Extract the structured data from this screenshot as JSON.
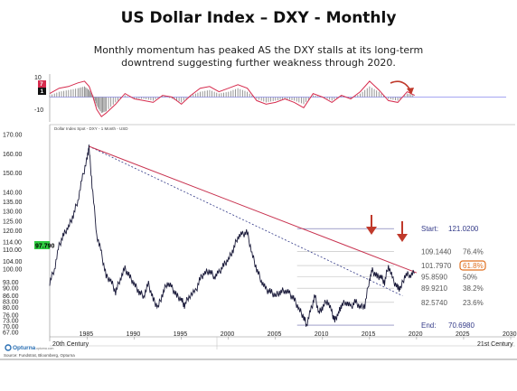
{
  "title": "US Dollar Index – DXY - Monthly",
  "subtitle": "Monthly momentum has peaked AS the DXY stalls at its long-term downtrend suggesting further weakness through 2020.",
  "chart_label": "Dollar Index Spot - DXY - 1 Month - USD",
  "source": "Source: Fundstrat, Bloomberg, Opturna",
  "logo": "Opturna",
  "logo_small": "opturna.com",
  "century_labels": [
    "20th Century",
    "21st Century"
  ],
  "colors": {
    "price": "#1a1a3a",
    "momentum_line": "#d62c4e",
    "momentum_hist": "#8a8a8a",
    "downtrend": "#c8324f",
    "arrow": "#c0392b",
    "fib_box": "#e07020",
    "current_badge": "#2ecc40",
    "zero_badge": "#111111",
    "pos_badge": "#d62c4e"
  },
  "chart_data": {
    "type": "line",
    "xlim": [
      1981,
      2030
    ],
    "ylim": [
      66,
      172
    ],
    "x_ticks": [
      "1985",
      "1990",
      "1995",
      "2000",
      "2005",
      "2010",
      "2015",
      "2020",
      "2025",
      "2030"
    ],
    "y_ticks": [
      "170.00",
      "160.00",
      "150.00",
      "140.00",
      "135.00",
      "130.00",
      "125.00",
      "120.00",
      "114.00",
      "110.00",
      "104.00",
      "100.00",
      "93.00",
      "90.00",
      "86.00",
      "83.00",
      "80.00",
      "76.00",
      "73.00",
      "70.00",
      "67.00"
    ],
    "current_value": "97.790",
    "series": [
      {
        "x": [
          1981.0,
          1981.5,
          1982.0,
          1982.5,
          1983.0,
          1983.5,
          1984.0,
          1984.5,
          1985.0,
          1985.17,
          1985.5,
          1986.0,
          1986.5,
          1987.0,
          1987.5,
          1988.0,
          1988.5,
          1989.0,
          1989.5,
          1990.0,
          1990.5,
          1991.0,
          1991.5,
          1992.0,
          1992.5,
          1993.0,
          1993.5,
          1994.0,
          1994.5,
          1995.0,
          1995.33,
          1995.8,
          1996.5,
          1997.0,
          1997.5,
          1998.0,
          1998.5,
          1999.0,
          1999.5,
          2000.0,
          2000.5,
          2001.0,
          2001.5,
          2002.0,
          2002.5,
          2003.0,
          2003.5,
          2004.0,
          2004.5,
          2005.0,
          2005.5,
          2006.0,
          2006.5,
          2007.0,
          2007.5,
          2008.0,
          2008.3,
          2008.8,
          2009.2,
          2009.6,
          2010.0,
          2010.5,
          2011.0,
          2011.3,
          2011.7,
          2012.0,
          2012.5,
          2013.0,
          2013.5,
          2014.0,
          2014.5,
          2015.0,
          2015.3,
          2015.8,
          2016.2,
          2016.6,
          2017.0,
          2017.5,
          2018.0,
          2018.3,
          2018.8,
          2019.3,
          2019.8
        ],
        "y": [
          93,
          100,
          112,
          118,
          122,
          128,
          136,
          148,
          158,
          164,
          144,
          118,
          108,
          96,
          94,
          88,
          95,
          100,
          96,
          92,
          88,
          86,
          92,
          84,
          80,
          87,
          93,
          90,
          86,
          84,
          81,
          86,
          88,
          95,
          98,
          99,
          96,
          98,
          102,
          105,
          110,
          117,
          118,
          119,
          108,
          100,
          94,
          89,
          88,
          86,
          88,
          89,
          87,
          84,
          79,
          75,
          71,
          79,
          86,
          77,
          80,
          84,
          77,
          73,
          77,
          81,
          83,
          80,
          83,
          80,
          81,
          95,
          99,
          96,
          96,
          93,
          102,
          94,
          90,
          90,
          97,
          97,
          98
        ]
      }
    ],
    "fib_levels": [
      {
        "value": "121.0200",
        "label": "Start:"
      },
      {
        "value": "109.1440",
        "label": "76.4%"
      },
      {
        "value": "101.7970",
        "label": "61.8%"
      },
      {
        "value": "95.8590",
        "label": "50%"
      },
      {
        "value": "89.9210",
        "label": "38.2%"
      },
      {
        "value": "82.5740",
        "label": "23.6%"
      },
      {
        "value": "70.6980",
        "label": "End:"
      }
    ],
    "momentum": {
      "y_ticks": [
        "10",
        "-10"
      ],
      "badges": [
        "7",
        "1"
      ],
      "ylim": [
        -13,
        12
      ],
      "x": [
        1981,
        1982,
        1983,
        1984,
        1984.7,
        1985.2,
        1985.6,
        1986,
        1986.5,
        1987,
        1988,
        1989,
        1990,
        1991,
        1992,
        1993,
        1994,
        1995,
        1996,
        1997,
        1998,
        1999,
        2000,
        2001,
        2002,
        2003,
        2004,
        2005,
        2006,
        2007,
        2008,
        2009,
        2010,
        2011,
        2012,
        2013,
        2014,
        2015,
        2016,
        2017,
        2018,
        2019,
        2019.8
      ],
      "line": [
        2,
        5,
        6,
        8,
        9,
        6,
        0,
        -7,
        -11,
        -9,
        -4,
        2,
        -1,
        -2,
        -3,
        1,
        0,
        -4,
        1,
        5,
        6,
        3,
        5,
        7,
        5,
        -2,
        -4,
        -3,
        -1,
        -3,
        -6,
        2,
        0,
        -3,
        1,
        -1,
        3,
        9,
        4,
        -2,
        -3,
        3,
        1
      ],
      "hist": [
        1,
        3,
        4,
        5,
        6,
        4,
        1,
        -5,
        -9,
        -8,
        -3,
        1,
        -1,
        -1,
        -2,
        1,
        -1,
        -3,
        1,
        3,
        4,
        2,
        3,
        5,
        3,
        -1,
        -3,
        -2,
        -1,
        -2,
        -4,
        1,
        0,
        -2,
        1,
        -1,
        2,
        6,
        3,
        -1,
        -2,
        2,
        1
      ]
    },
    "downtrend": [
      [
        1985.17,
        164
      ],
      [
        2020,
        98
      ]
    ],
    "dotted_trend": [
      [
        1985.17,
        164
      ],
      [
        2018.5,
        86
      ]
    ]
  }
}
